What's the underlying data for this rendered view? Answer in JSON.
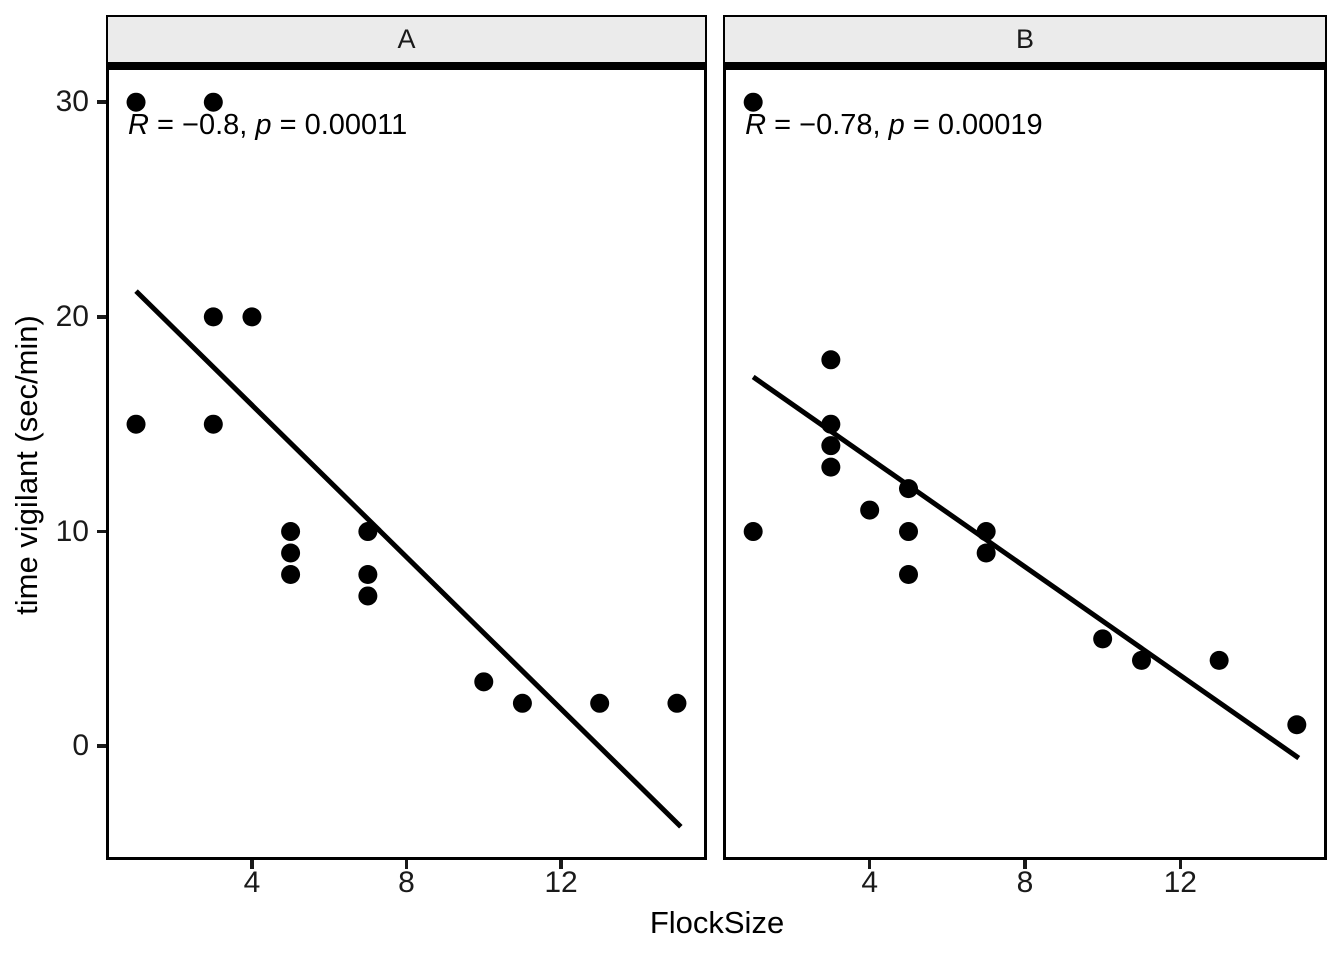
{
  "figure": {
    "x_axis_label": "FlockSize",
    "y_axis_label": "time vigilant (sec/min)"
  },
  "axes": {
    "x_ticks": [
      "4",
      "8",
      "12"
    ],
    "x_tick_values": [
      4,
      8,
      12
    ],
    "y_ticks": [
      "30",
      "20",
      "10",
      "0"
    ],
    "y_tick_values": [
      30,
      20,
      10,
      0
    ],
    "x_domain": [
      0.3,
      15.7
    ],
    "y_domain": [
      -5.3,
      31.5
    ],
    "grid": "off",
    "legend": "none"
  },
  "chart_data": [
    {
      "type": "scatter",
      "facet_label": "A",
      "xlabel": "FlockSize",
      "ylabel": "time vigilant (sec/min)",
      "points": [
        [
          1,
          30
        ],
        [
          3,
          30
        ],
        [
          3,
          20
        ],
        [
          4,
          20
        ],
        [
          1,
          15
        ],
        [
          3,
          15
        ],
        [
          5,
          10
        ],
        [
          5,
          9
        ],
        [
          5,
          8
        ],
        [
          7,
          10
        ],
        [
          7,
          8
        ],
        [
          7,
          7
        ],
        [
          10,
          3
        ],
        [
          11,
          2
        ],
        [
          13,
          2
        ],
        [
          15,
          2
        ]
      ],
      "trend_line": {
        "type": "linear",
        "slope": -1.77,
        "intercept": 23.0,
        "x1": 1,
        "y1": 21.2,
        "x2": 15.1,
        "y2": -3.75
      },
      "annotation": {
        "r_var": "R",
        "r_text": " = −0.8, ",
        "p_var": "p",
        "p_text": " = 0.00011",
        "anchor_x": 1,
        "anchor_y": 28.5
      }
    },
    {
      "type": "scatter",
      "facet_label": "B",
      "xlabel": "FlockSize",
      "ylabel": "time vigilant (sec/min)",
      "points": [
        [
          1,
          30
        ],
        [
          3,
          18
        ],
        [
          3,
          15
        ],
        [
          3,
          14
        ],
        [
          3,
          13
        ],
        [
          5,
          12
        ],
        [
          4,
          11
        ],
        [
          1,
          10
        ],
        [
          5,
          10
        ],
        [
          7,
          10
        ],
        [
          7,
          9
        ],
        [
          5,
          8
        ],
        [
          10,
          5
        ],
        [
          11,
          4
        ],
        [
          13,
          4
        ],
        [
          15,
          1
        ]
      ],
      "trend_line": {
        "type": "linear",
        "slope": -1.26,
        "intercept": 18.45,
        "x1": 1,
        "y1": 17.2,
        "x2": 15.05,
        "y2": -0.55
      },
      "annotation": {
        "r_var": "R",
        "r_text": " = −0.78, ",
        "p_var": "p",
        "p_text": " = 0.00019",
        "anchor_x": 1,
        "anchor_y": 28.5
      }
    }
  ],
  "style": {
    "point_color": "#000000",
    "trend_color": "#000000",
    "strip_fill": "#ebebeb",
    "border_color": "#000000",
    "text_color": "#1a1a1a"
  }
}
